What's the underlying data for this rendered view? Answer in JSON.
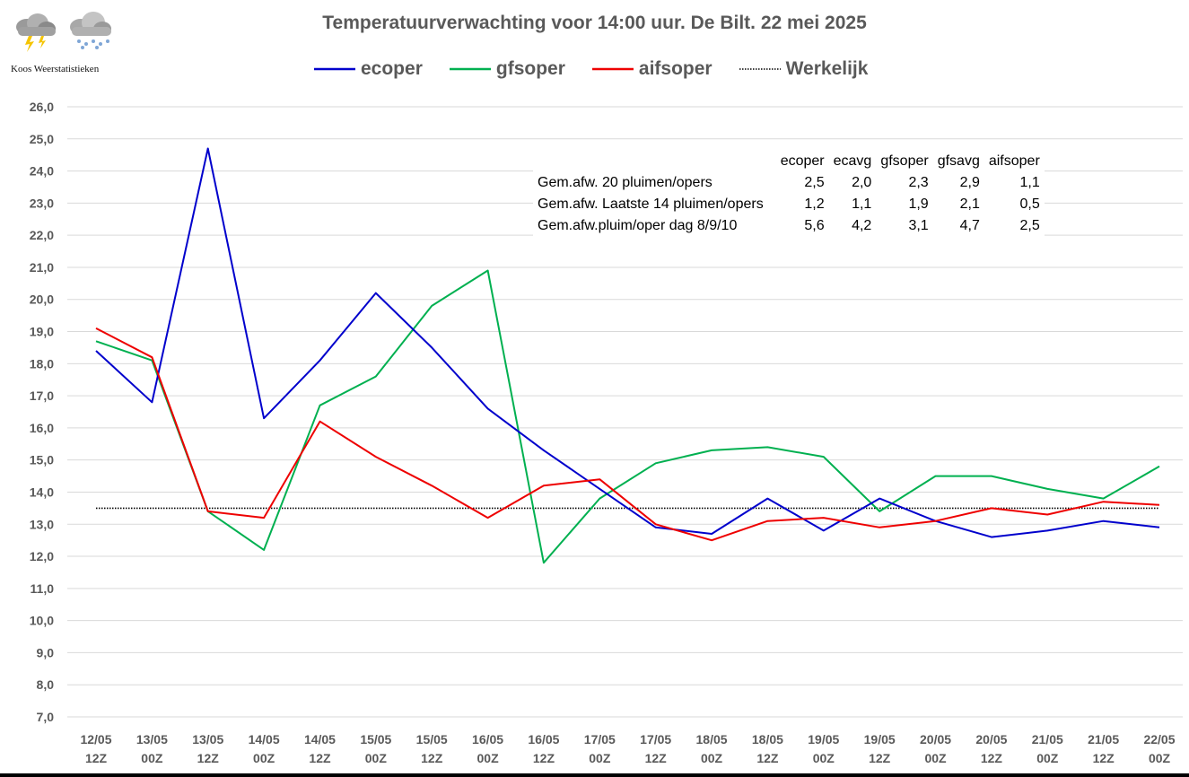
{
  "logo_text": "Koos Weerstatistieken",
  "chart_data": {
    "type": "line",
    "title": "Temperatuurverwachting voor 14:00 uur. De Bilt. 22 mei 2025",
    "xlabel": "",
    "ylabel": "",
    "ylim": [
      7.0,
      26.0
    ],
    "y_ticks": [
      "7,0",
      "8,0",
      "9,0",
      "10,0",
      "11,0",
      "12,0",
      "13,0",
      "14,0",
      "15,0",
      "16,0",
      "17,0",
      "18,0",
      "19,0",
      "20,0",
      "21,0",
      "22,0",
      "23,0",
      "24,0",
      "25,0",
      "26,0"
    ],
    "grid": true,
    "legend_position": "top",
    "categories": [
      [
        "12/05",
        "12Z"
      ],
      [
        "13/05",
        "00Z"
      ],
      [
        "13/05",
        "12Z"
      ],
      [
        "14/05",
        "00Z"
      ],
      [
        "14/05",
        "12Z"
      ],
      [
        "15/05",
        "00Z"
      ],
      [
        "15/05",
        "12Z"
      ],
      [
        "16/05",
        "00Z"
      ],
      [
        "16/05",
        "12Z"
      ],
      [
        "17/05",
        "00Z"
      ],
      [
        "17/05",
        "12Z"
      ],
      [
        "18/05",
        "00Z"
      ],
      [
        "18/05",
        "12Z"
      ],
      [
        "19/05",
        "00Z"
      ],
      [
        "19/05",
        "12Z"
      ],
      [
        "20/05",
        "00Z"
      ],
      [
        "20/05",
        "12Z"
      ],
      [
        "21/05",
        "00Z"
      ],
      [
        "21/05",
        "12Z"
      ],
      [
        "22/05",
        "00Z"
      ]
    ],
    "series": [
      {
        "name": "ecoper",
        "color": "#0000cc",
        "style": "solid",
        "values": [
          18.4,
          16.8,
          24.7,
          16.3,
          18.1,
          20.2,
          18.5,
          16.6,
          15.3,
          14.1,
          12.9,
          12.7,
          13.8,
          12.8,
          13.8,
          13.1,
          12.6,
          12.8,
          13.1,
          12.9
        ]
      },
      {
        "name": "gfsoper",
        "color": "#00b050",
        "style": "solid",
        "values": [
          18.7,
          18.1,
          13.4,
          12.2,
          16.7,
          17.6,
          19.8,
          20.9,
          11.8,
          13.8,
          14.9,
          15.3,
          15.4,
          15.1,
          13.4,
          14.5,
          14.5,
          14.1,
          13.8,
          14.8
        ]
      },
      {
        "name": "aifsoper",
        "color": "#ee0000",
        "style": "solid",
        "values": [
          19.1,
          18.2,
          13.4,
          13.2,
          16.2,
          15.1,
          14.2,
          13.2,
          14.2,
          14.4,
          13.0,
          12.5,
          13.1,
          13.2,
          12.9,
          13.1,
          13.5,
          13.3,
          13.7,
          13.6
        ]
      },
      {
        "name": "Werkelijk",
        "color": "#000000",
        "style": "dotted",
        "values": [
          13.5,
          13.5,
          13.5,
          13.5,
          13.5,
          13.5,
          13.5,
          13.5,
          13.5,
          13.5,
          13.5,
          13.5,
          13.5,
          13.5,
          13.5,
          13.5,
          13.5,
          13.5,
          13.5,
          13.5
        ]
      }
    ],
    "stats_table": {
      "headers": [
        "",
        "ecoper",
        "ecavg",
        "gfsoper",
        "gfsavg",
        "aifsoper"
      ],
      "rows": [
        [
          "Gem.afw. 20 pluimen/opers",
          "2,5",
          "2,0",
          "2,3",
          "2,9",
          "1,1"
        ],
        [
          "Gem.afw. Laatste 14 pluimen/opers",
          "1,2",
          "1,1",
          "1,9",
          "2,1",
          "0,5"
        ],
        [
          "Gem.afw.pluim/oper dag 8/9/10",
          "5,6",
          "4,2",
          "3,1",
          "4,7",
          "2,5"
        ]
      ]
    }
  }
}
